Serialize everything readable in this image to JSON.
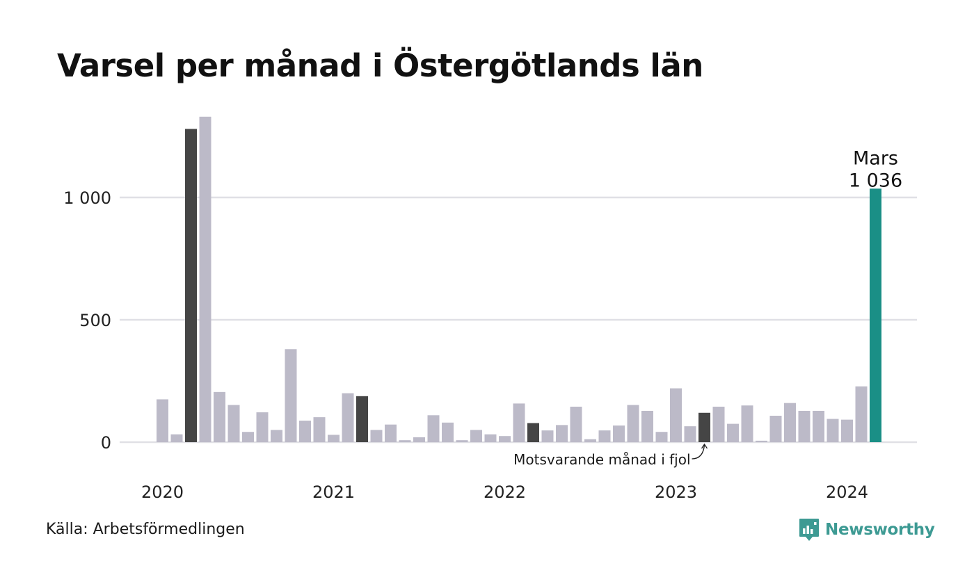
{
  "title": "Varsel per månad i Östergötlands län",
  "source": "Källa: Arbetsförmedlingen",
  "brand": {
    "name": "Newsworthy",
    "icon": "newsworthy-chart-bubble-icon"
  },
  "colors": {
    "default_bar": "#bcbac8",
    "comparison_bar": "#454545",
    "current_bar": "#1a8f86",
    "grid": "#e0e0e5",
    "brand": "#3d9a93"
  },
  "chart_data": {
    "type": "bar",
    "ylim": [
      0,
      1400
    ],
    "y_ticks": [
      0,
      500,
      1000
    ],
    "y_tick_labels": [
      "0",
      "500",
      "1 000"
    ],
    "x_ticks": [
      {
        "label": "2020",
        "index": 0
      },
      {
        "label": "2021",
        "index": 12
      },
      {
        "label": "2022",
        "index": 24
      },
      {
        "label": "2023",
        "index": 36
      },
      {
        "label": "2024",
        "index": 48
      }
    ],
    "grid": true,
    "start": "2020-01",
    "end": "2024-03",
    "values": [
      175,
      32,
      1280,
      1330,
      205,
      152,
      42,
      122,
      50,
      380,
      88,
      102,
      30,
      200,
      188,
      50,
      72,
      8,
      20,
      110,
      80,
      8,
      50,
      32,
      25,
      158,
      78,
      48,
      70,
      145,
      12,
      48,
      68,
      152,
      128,
      42,
      220,
      65,
      120,
      145,
      75,
      150,
      6,
      108,
      160,
      128,
      128,
      95,
      92,
      228,
      1036
    ],
    "highlight": {
      "comparison_indices": [
        2,
        14,
        26,
        38
      ],
      "current_index": 50
    },
    "annotations": {
      "current_month": "Mars",
      "current_value": "1 036",
      "comparison_note": "Motsvarande månad i fjol"
    }
  }
}
